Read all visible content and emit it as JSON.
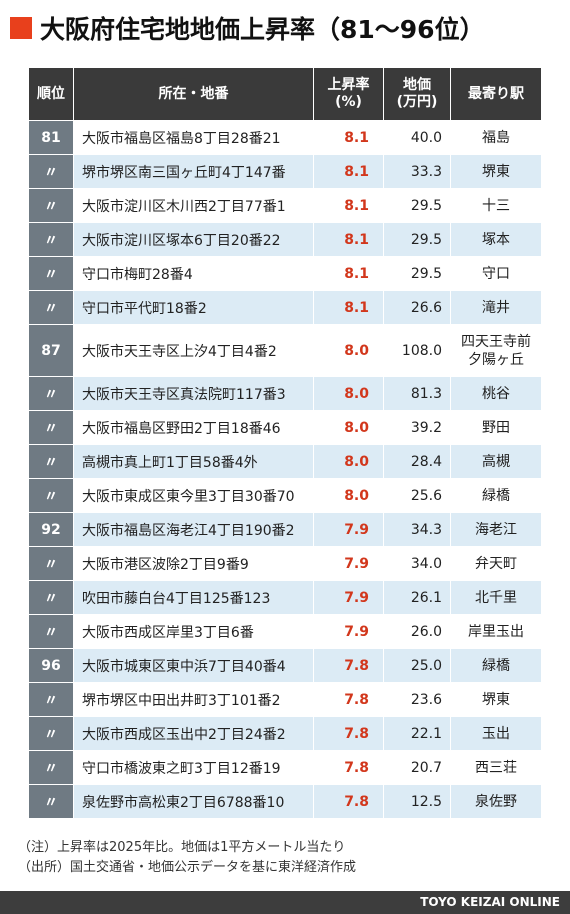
{
  "title": "大阪府住宅地地価上昇率（81〜96位）",
  "headers": {
    "rank": "順位",
    "address": "所在・地番",
    "rate_line1": "上昇率",
    "rate_line2": "(%)",
    "price_line1": "地価",
    "price_line2": "(万円)",
    "station": "最寄り駅"
  },
  "rows": [
    {
      "rank": "81",
      "address": "大阪市福島区福島8丁目28番21",
      "rate": "8.1",
      "price": "40.0",
      "station": "福島",
      "station2": ""
    },
    {
      "rank": "〃",
      "address": "堺市堺区南三国ヶ丘町4丁147番",
      "rate": "8.1",
      "price": "33.3",
      "station": "堺東",
      "station2": ""
    },
    {
      "rank": "〃",
      "address": "大阪市淀川区木川西2丁目77番1",
      "rate": "8.1",
      "price": "29.5",
      "station": "十三",
      "station2": ""
    },
    {
      "rank": "〃",
      "address": "大阪市淀川区塚本6丁目20番22",
      "rate": "8.1",
      "price": "29.5",
      "station": "塚本",
      "station2": ""
    },
    {
      "rank": "〃",
      "address": "守口市梅町28番4",
      "rate": "8.1",
      "price": "29.5",
      "station": "守口",
      "station2": ""
    },
    {
      "rank": "〃",
      "address": "守口市平代町18番2",
      "rate": "8.1",
      "price": "26.6",
      "station": "滝井",
      "station2": ""
    },
    {
      "rank": "87",
      "address": "大阪市天王寺区上汐4丁目4番2",
      "rate": "8.0",
      "price": "108.0",
      "station": "四天王寺前",
      "station2": "夕陽ヶ丘"
    },
    {
      "rank": "〃",
      "address": "大阪市天王寺区真法院町117番3",
      "rate": "8.0",
      "price": "81.3",
      "station": "桃谷",
      "station2": ""
    },
    {
      "rank": "〃",
      "address": "大阪市福島区野田2丁目18番46",
      "rate": "8.0",
      "price": "39.2",
      "station": "野田",
      "station2": ""
    },
    {
      "rank": "〃",
      "address": "高槻市真上町1丁目58番4外",
      "rate": "8.0",
      "price": "28.4",
      "station": "高槻",
      "station2": ""
    },
    {
      "rank": "〃",
      "address": "大阪市東成区東今里3丁目30番70",
      "rate": "8.0",
      "price": "25.6",
      "station": "緑橋",
      "station2": ""
    },
    {
      "rank": "92",
      "address": "大阪市福島区海老江4丁目190番2",
      "rate": "7.9",
      "price": "34.3",
      "station": "海老江",
      "station2": ""
    },
    {
      "rank": "〃",
      "address": "大阪市港区波除2丁目9番9",
      "rate": "7.9",
      "price": "34.0",
      "station": "弁天町",
      "station2": ""
    },
    {
      "rank": "〃",
      "address": "吹田市藤白台4丁目125番123",
      "rate": "7.9",
      "price": "26.1",
      "station": "北千里",
      "station2": ""
    },
    {
      "rank": "〃",
      "address": "大阪市西成区岸里3丁目6番",
      "rate": "7.9",
      "price": "26.0",
      "station": "岸里玉出",
      "station2": ""
    },
    {
      "rank": "96",
      "address": "大阪市城東区東中浜7丁目40番4",
      "rate": "7.8",
      "price": "25.0",
      "station": "緑橋",
      "station2": ""
    },
    {
      "rank": "〃",
      "address": "堺市堺区中田出井町3丁101番2",
      "rate": "7.8",
      "price": "23.6",
      "station": "堺東",
      "station2": ""
    },
    {
      "rank": "〃",
      "address": "大阪市西成区玉出中2丁目24番2",
      "rate": "7.8",
      "price": "22.1",
      "station": "玉出",
      "station2": ""
    },
    {
      "rank": "〃",
      "address": "守口市橋波東之町3丁目12番19",
      "rate": "7.8",
      "price": "20.7",
      "station": "西三荘",
      "station2": ""
    },
    {
      "rank": "〃",
      "address": "泉佐野市高松東2丁目6788番10",
      "rate": "7.8",
      "price": "12.5",
      "station": "泉佐野",
      "station2": ""
    }
  ],
  "notes": {
    "note1": "（注）上昇率は2025年比。地価は1平方メートル当たり",
    "note2": "（出所）国土交通省・地価公示データを基に東洋経済作成"
  },
  "footer": "TOYO KEIZAI ONLINE",
  "colors": {
    "accent": "#e8401c",
    "header_bg": "#3a3a3a",
    "rank_bg": "#6f7a83",
    "stripe": "#dcebf5",
    "rate_text": "#d2371c"
  }
}
